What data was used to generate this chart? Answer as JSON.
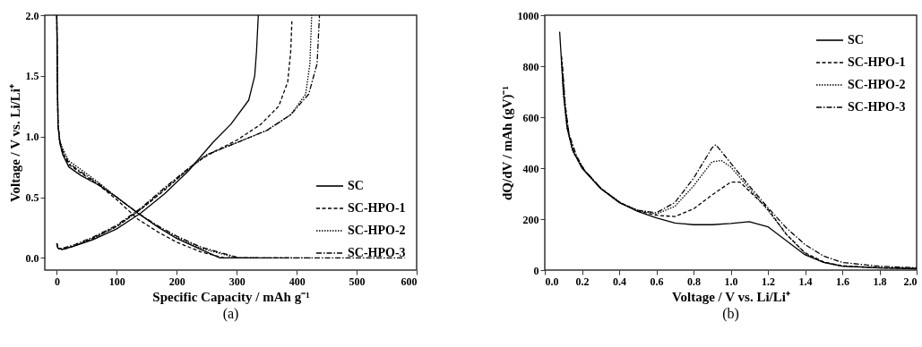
{
  "chart_data": [
    {
      "type": "line",
      "xlabel": "Specific Capacity / mAh g⁻¹",
      "ylabel": "Voltage / V vs. Li/Li⁺",
      "annotations": [
        "(a)"
      ],
      "legend": "bottom right",
      "grid": false,
      "xlim": [
        -20,
        600
      ],
      "ylim": [
        -0.1,
        2.0
      ],
      "xticks": [
        0,
        100,
        200,
        300,
        400,
        500,
        600
      ],
      "yticks": [
        {
          "value": 0,
          "label": "0.0"
        },
        {
          "value": 0.5,
          "label": "0.5"
        },
        {
          "value": 1,
          "label": "1.0"
        },
        {
          "value": 1.5,
          "label": "1.5"
        },
        {
          "value": 2,
          "label": "2.0"
        }
      ],
      "series": [
        {
          "name": "SC",
          "color": "#000000",
          "line_style": "solid",
          "x": [
            0,
            1,
            2,
            5,
            10,
            20,
            40,
            70,
            100,
            135,
            170,
            200,
            240,
            272,
            335
          ],
          "values": [
            2.0,
            1.5,
            1.1,
            0.95,
            0.85,
            0.75,
            0.68,
            0.6,
            0.5,
            0.37,
            0.25,
            0.16,
            0.07,
            0.0,
            0.0
          ]
        },
        {
          "name": "SC-HPO-1",
          "color": "#000000",
          "line_style": "dashed",
          "x": [
            0,
            1,
            2,
            5,
            10,
            20,
            40,
            70,
            100,
            135,
            170,
            200,
            240,
            280,
            390
          ],
          "values": [
            2.0,
            1.5,
            1.1,
            0.95,
            0.86,
            0.77,
            0.7,
            0.6,
            0.48,
            0.32,
            0.21,
            0.13,
            0.05,
            0.0,
            0.0
          ]
        },
        {
          "name": "SC-HPO-2",
          "color": "#000000",
          "line_style": "dotted",
          "x": [
            0,
            1,
            2,
            5,
            10,
            20,
            40,
            70,
            100,
            135,
            170,
            200,
            240,
            300,
            425
          ],
          "values": [
            2.0,
            1.5,
            1.1,
            0.97,
            0.9,
            0.8,
            0.73,
            0.62,
            0.5,
            0.37,
            0.25,
            0.17,
            0.08,
            0.0,
            0.0
          ]
        },
        {
          "name": "SC-HPO-3",
          "color": "#000000",
          "line_style": "dashdot",
          "x": [
            0,
            1,
            2,
            5,
            10,
            20,
            40,
            70,
            100,
            135,
            170,
            200,
            240,
            305,
            580
          ],
          "values": [
            2.0,
            1.5,
            1.1,
            0.96,
            0.88,
            0.78,
            0.71,
            0.61,
            0.5,
            0.37,
            0.26,
            0.18,
            0.09,
            0.0,
            0.0
          ]
        },
        {
          "color": "#000000",
          "line_style": "solid",
          "x": [
            0,
            2,
            10,
            30,
            60,
            100,
            140,
            180,
            220,
            260,
            290,
            320,
            330,
            333,
            336
          ],
          "values": [
            0.12,
            0.08,
            0.07,
            0.1,
            0.15,
            0.24,
            0.37,
            0.53,
            0.72,
            0.95,
            1.1,
            1.3,
            1.5,
            1.7,
            2.0
          ]
        },
        {
          "color": "#000000",
          "line_style": "dashed",
          "x": [
            0,
            2,
            10,
            30,
            60,
            100,
            140,
            180,
            230,
            260,
            300,
            340,
            370,
            385,
            390,
            392
          ],
          "values": [
            0.12,
            0.08,
            0.07,
            0.1,
            0.16,
            0.26,
            0.4,
            0.56,
            0.78,
            0.87,
            0.97,
            1.1,
            1.25,
            1.45,
            1.7,
            1.95
          ]
        },
        {
          "color": "#000000",
          "line_style": "dotted",
          "x": [
            0,
            2,
            10,
            30,
            60,
            100,
            140,
            180,
            220,
            250,
            300,
            350,
            390,
            415,
            422,
            425
          ],
          "values": [
            0.12,
            0.08,
            0.07,
            0.1,
            0.16,
            0.26,
            0.4,
            0.57,
            0.73,
            0.85,
            0.95,
            1.05,
            1.18,
            1.35,
            1.6,
            2.0
          ]
        },
        {
          "color": "#000000",
          "line_style": "dashdot",
          "x": [
            0,
            2,
            10,
            30,
            60,
            100,
            140,
            180,
            220,
            250,
            300,
            350,
            390,
            420,
            434,
            438
          ],
          "values": [
            0.12,
            0.08,
            0.08,
            0.11,
            0.17,
            0.27,
            0.41,
            0.58,
            0.74,
            0.85,
            0.95,
            1.05,
            1.18,
            1.35,
            1.6,
            2.0
          ]
        }
      ]
    },
    {
      "type": "line",
      "xlabel": "Voltage / V vs. Li/Li⁺",
      "ylabel": "dQ/dV / mAh (gV)⁻¹",
      "annotations": [
        "(b)"
      ],
      "legend": "top right",
      "grid": false,
      "xlim": [
        0,
        2.0
      ],
      "ylim": [
        0,
        1000
      ],
      "xticks": [
        {
          "value": 0,
          "label": "0.0"
        },
        {
          "value": 0.2,
          "label": "0.2"
        },
        {
          "value": 0.4,
          "label": "0.4"
        },
        {
          "value": 0.6,
          "label": "0.6"
        },
        {
          "value": 0.8,
          "label": "0.8"
        },
        {
          "value": 1,
          "label": "1.0"
        },
        {
          "value": 1.2,
          "label": "1.2"
        },
        {
          "value": 1.4,
          "label": "1.4"
        },
        {
          "value": 1.6,
          "label": "1.6"
        },
        {
          "value": 1.8,
          "label": "1.8"
        },
        {
          "value": 2,
          "label": "2.0"
        }
      ],
      "yticks": [
        0,
        200,
        400,
        600,
        800,
        1000
      ],
      "series": [
        {
          "name": "SC",
          "color": "#000000",
          "line_style": "solid",
          "x": [
            0.08,
            0.1,
            0.12,
            0.15,
            0.2,
            0.3,
            0.4,
            0.5,
            0.6,
            0.7,
            0.8,
            0.9,
            1.0,
            1.1,
            1.2,
            1.3,
            1.4,
            1.5,
            1.6,
            1.8,
            2.0
          ],
          "values": [
            935,
            700,
            560,
            470,
            400,
            320,
            265,
            230,
            205,
            185,
            178,
            178,
            183,
            190,
            170,
            115,
            60,
            30,
            15,
            8,
            5
          ]
        },
        {
          "name": "SC-HPO-1",
          "color": "#000000",
          "line_style": "dashed",
          "x": [
            0.09,
            0.11,
            0.13,
            0.16,
            0.2,
            0.3,
            0.4,
            0.5,
            0.6,
            0.7,
            0.8,
            0.9,
            1.0,
            1.05,
            1.1,
            1.2,
            1.3,
            1.4,
            1.5,
            1.6,
            1.8,
            2.0
          ],
          "values": [
            840,
            640,
            530,
            455,
            402,
            322,
            267,
            232,
            215,
            210,
            240,
            295,
            345,
            345,
            310,
            240,
            140,
            68,
            32,
            17,
            9,
            6
          ]
        },
        {
          "name": "SC-HPO-2",
          "color": "#000000",
          "line_style": "dotted",
          "x": [
            0.09,
            0.1,
            0.12,
            0.15,
            0.22,
            0.3,
            0.42,
            0.5,
            0.6,
            0.7,
            0.8,
            0.9,
            0.95,
            1.0,
            1.1,
            1.2,
            1.3,
            1.4,
            1.5,
            1.6,
            1.8,
            2.0
          ],
          "values": [
            830,
            690,
            555,
            468,
            385,
            322,
            258,
            235,
            220,
            250,
            330,
            425,
            430,
            405,
            320,
            235,
            140,
            65,
            30,
            15,
            10,
            7
          ]
        },
        {
          "name": "SC-HPO-3",
          "color": "#000000",
          "line_style": "dashdot",
          "x": [
            0.095,
            0.11,
            0.13,
            0.17,
            0.21,
            0.31,
            0.41,
            0.5,
            0.6,
            0.7,
            0.8,
            0.9,
            0.92,
            1.0,
            1.1,
            1.2,
            1.3,
            1.4,
            1.5,
            1.6,
            1.8,
            2.0
          ],
          "values": [
            800,
            650,
            535,
            450,
            395,
            315,
            262,
            235,
            225,
            265,
            360,
            480,
            492,
            420,
            330,
            245,
            165,
            100,
            55,
            30,
            15,
            9
          ]
        }
      ]
    }
  ]
}
